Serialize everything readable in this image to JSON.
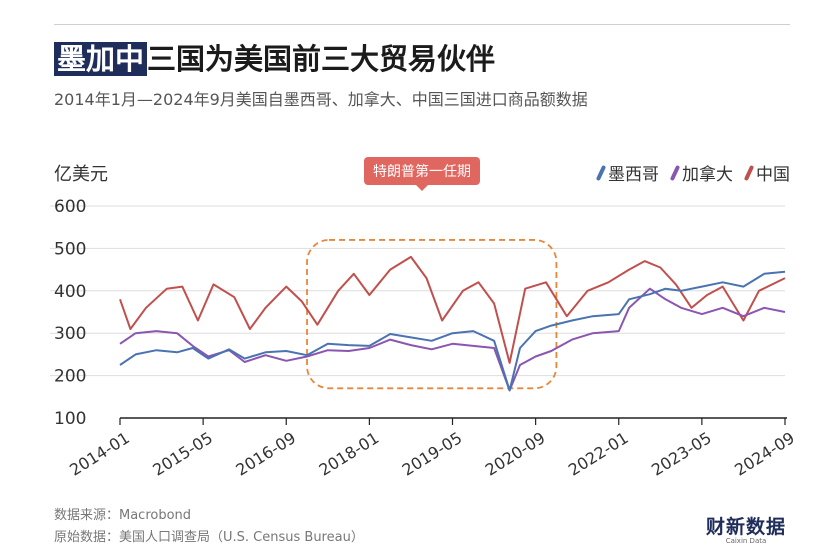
{
  "title": {
    "highlight": "墨加中",
    "rest": "三国为美国前三大贸易伙伴"
  },
  "subtitle": "2014年1月—2024年9月美国自墨西哥、加拿大、中国三国进口商品额数据",
  "footer": {
    "source": "数据来源：Macrobond",
    "original": "原始数据：美国人口调查局（U.S. Census Bureau）"
  },
  "logo": {
    "cn": "财新数据",
    "en": "Caixin Data"
  },
  "colors": {
    "mexico": "#4a73b0",
    "canada": "#8a56b0",
    "china": "#c0504d",
    "annotation": "#e06660"
  },
  "chart_data": {
    "type": "line",
    "title": "墨加中三国为美国前三大贸易伙伴",
    "ylabel": "亿美元",
    "ylim": [
      100,
      600
    ],
    "yticks": [
      100,
      200,
      300,
      400,
      500,
      600
    ],
    "xticks": [
      "2014-01",
      "2015-05",
      "2016-09",
      "2018-01",
      "2019-05",
      "2020-09",
      "2022-01",
      "2023-05",
      "2024-09"
    ],
    "xrange": [
      "2014-01",
      "2024-09"
    ],
    "legend": "top-right",
    "grid": "horizontal",
    "annotation": {
      "label": "特朗普第一任期",
      "start": "2017-01",
      "end": "2021-01",
      "ymin": 170,
      "ymax": 520
    },
    "series": [
      {
        "name": "墨西哥",
        "key": "mexico",
        "points": [
          [
            "2014-01",
            225
          ],
          [
            "2014-04",
            250
          ],
          [
            "2014-08",
            260
          ],
          [
            "2014-12",
            255
          ],
          [
            "2015-03",
            265
          ],
          [
            "2015-06",
            240
          ],
          [
            "2015-10",
            262
          ],
          [
            "2016-01",
            240
          ],
          [
            "2016-05",
            255
          ],
          [
            "2016-09",
            258
          ],
          [
            "2017-01",
            248
          ],
          [
            "2017-05",
            275
          ],
          [
            "2017-09",
            272
          ],
          [
            "2018-01",
            270
          ],
          [
            "2018-05",
            298
          ],
          [
            "2018-09",
            290
          ],
          [
            "2019-01",
            282
          ],
          [
            "2019-05",
            300
          ],
          [
            "2019-09",
            305
          ],
          [
            "2020-01",
            282
          ],
          [
            "2020-04",
            165
          ],
          [
            "2020-06",
            265
          ],
          [
            "2020-09",
            305
          ],
          [
            "2020-12",
            318
          ],
          [
            "2021-04",
            330
          ],
          [
            "2021-08",
            340
          ],
          [
            "2022-01",
            345
          ],
          [
            "2022-03",
            380
          ],
          [
            "2022-07",
            392
          ],
          [
            "2022-10",
            405
          ],
          [
            "2023-01",
            400
          ],
          [
            "2023-05",
            410
          ],
          [
            "2023-09",
            420
          ],
          [
            "2024-01",
            410
          ],
          [
            "2024-05",
            440
          ],
          [
            "2024-09",
            445
          ]
        ]
      },
      {
        "name": "加拿大",
        "key": "canada",
        "points": [
          [
            "2014-01",
            275
          ],
          [
            "2014-04",
            300
          ],
          [
            "2014-08",
            305
          ],
          [
            "2014-12",
            300
          ],
          [
            "2015-03",
            270
          ],
          [
            "2015-06",
            245
          ],
          [
            "2015-10",
            260
          ],
          [
            "2016-01",
            232
          ],
          [
            "2016-05",
            248
          ],
          [
            "2016-09",
            235
          ],
          [
            "2017-01",
            245
          ],
          [
            "2017-05",
            260
          ],
          [
            "2017-09",
            258
          ],
          [
            "2018-01",
            265
          ],
          [
            "2018-05",
            285
          ],
          [
            "2018-09",
            272
          ],
          [
            "2019-01",
            262
          ],
          [
            "2019-05",
            275
          ],
          [
            "2019-09",
            270
          ],
          [
            "2020-01",
            265
          ],
          [
            "2020-04",
            165
          ],
          [
            "2020-06",
            225
          ],
          [
            "2020-09",
            245
          ],
          [
            "2020-12",
            258
          ],
          [
            "2021-04",
            285
          ],
          [
            "2021-08",
            300
          ],
          [
            "2022-01",
            305
          ],
          [
            "2022-03",
            360
          ],
          [
            "2022-07",
            405
          ],
          [
            "2022-10",
            380
          ],
          [
            "2023-01",
            360
          ],
          [
            "2023-05",
            345
          ],
          [
            "2023-09",
            360
          ],
          [
            "2024-01",
            340
          ],
          [
            "2024-05",
            360
          ],
          [
            "2024-09",
            350
          ]
        ]
      },
      {
        "name": "中国",
        "key": "china",
        "points": [
          [
            "2014-01",
            380
          ],
          [
            "2014-03",
            310
          ],
          [
            "2014-06",
            360
          ],
          [
            "2014-10",
            405
          ],
          [
            "2015-01",
            410
          ],
          [
            "2015-04",
            330
          ],
          [
            "2015-07",
            415
          ],
          [
            "2015-11",
            385
          ],
          [
            "2016-02",
            310
          ],
          [
            "2016-05",
            360
          ],
          [
            "2016-09",
            410
          ],
          [
            "2016-12",
            375
          ],
          [
            "2017-03",
            320
          ],
          [
            "2017-07",
            400
          ],
          [
            "2017-10",
            440
          ],
          [
            "2018-01",
            390
          ],
          [
            "2018-05",
            450
          ],
          [
            "2018-09",
            480
          ],
          [
            "2018-12",
            430
          ],
          [
            "2019-03",
            330
          ],
          [
            "2019-07",
            400
          ],
          [
            "2019-10",
            420
          ],
          [
            "2020-01",
            370
          ],
          [
            "2020-04",
            230
          ],
          [
            "2020-07",
            405
          ],
          [
            "2020-11",
            420
          ],
          [
            "2021-03",
            340
          ],
          [
            "2021-07",
            400
          ],
          [
            "2021-11",
            420
          ],
          [
            "2022-03",
            450
          ],
          [
            "2022-06",
            470
          ],
          [
            "2022-09",
            455
          ],
          [
            "2022-12",
            415
          ],
          [
            "2023-03",
            360
          ],
          [
            "2023-06",
            390
          ],
          [
            "2023-09",
            410
          ],
          [
            "2024-01",
            330
          ],
          [
            "2024-04",
            400
          ],
          [
            "2024-09",
            430
          ]
        ]
      }
    ]
  }
}
